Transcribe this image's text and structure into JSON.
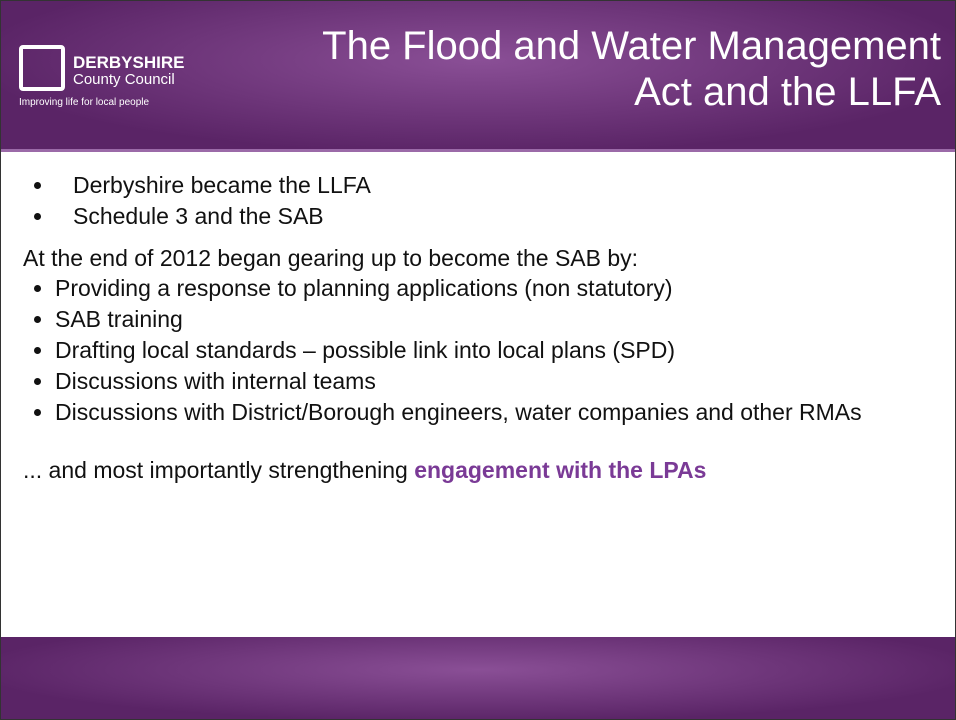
{
  "header": {
    "logo": {
      "name": "DERBYSHIRE",
      "subname": "County Council",
      "tagline": "Improving life for local people"
    },
    "title": "The Flood and Water Management Act and the LLFA"
  },
  "body": {
    "bullets1": [
      "Derbyshire became the LLFA",
      "Schedule 3 and the SAB"
    ],
    "intro": "At the end of 2012 began gearing up to become the SAB by:",
    "bullets2": [
      "Providing a response to planning applications (non statutory)",
      "SAB training",
      "Drafting local standards – possible link into local plans (SPD)",
      "Discussions with internal teams",
      "Discussions with District/Borough engineers, water companies and other RMAs"
    ],
    "closing": "... and most importantly strengthening",
    "closing_emphasis": "engagement with the LPAs"
  }
}
